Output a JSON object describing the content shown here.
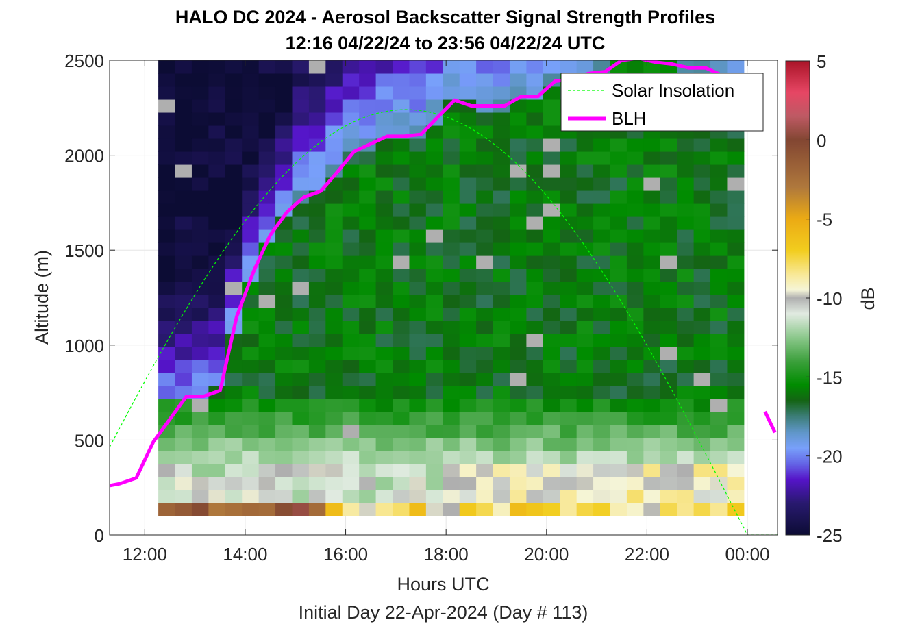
{
  "chart_data": {
    "type": "heatmap",
    "title": "HALO DC 2024 - Aerosol Backscatter Signal Strength Profiles",
    "subtitle": "12:16 04/22/24 to 23:56 04/22/24  UTC",
    "xlabel": "Hours UTC",
    "xlabel2": "Initial Day 22-Apr-2024 (Day # 113)",
    "ylabel": "Altitude (m)",
    "xlim": [
      11.3,
      24.6
    ],
    "ylim": [
      0,
      2500
    ],
    "xticks": [
      12,
      14,
      16,
      18,
      20,
      22,
      24
    ],
    "xtick_labels": [
      "12:00",
      "14:00",
      "16:00",
      "18:00",
      "20:00",
      "22:00",
      "00:00"
    ],
    "yticks": [
      0,
      500,
      1000,
      1500,
      2000,
      2500
    ],
    "ytick_labels": [
      "0",
      "500",
      "1000",
      "1500",
      "2000",
      "2500"
    ],
    "colorbar": {
      "label": "dB",
      "range": [
        -25,
        5
      ],
      "ticks": [
        5,
        0,
        -5,
        -10,
        -15,
        -20,
        -25
      ],
      "tick_labels": [
        "5",
        "0",
        "-5",
        "-10",
        "-15",
        "-20",
        "-25"
      ]
    },
    "heatmap": {
      "time_start": 12.27,
      "time_end": 23.93,
      "alt_start": 100,
      "alt_end": 2500,
      "columns": 35,
      "rows": 35,
      "description_values_in_dB": "modeled from image"
    },
    "legend": {
      "position": "top-right",
      "entries": [
        {
          "name": "Solar Insolation",
          "color": "#00ff00",
          "style": "dashed"
        },
        {
          "name": "BLH",
          "color": "#ff00ff",
          "style": "solid"
        }
      ]
    },
    "series": [
      {
        "name": "BLH",
        "color": "#ff00ff",
        "x": [
          11.3,
          11.5,
          11.83,
          12.17,
          12.5,
          12.83,
          13.17,
          13.5,
          13.83,
          14.17,
          14.5,
          14.83,
          15.17,
          15.5,
          15.83,
          16.17,
          16.5,
          16.83,
          17.17,
          17.5,
          17.83,
          18.17,
          18.5,
          18.83,
          19.17,
          19.5,
          19.83,
          20.17,
          20.5,
          20.83,
          21.17,
          21.5,
          21.83,
          22.17,
          22.5,
          22.83,
          23.17,
          23.5
        ],
        "y": [
          260,
          270,
          300,
          490,
          610,
          730,
          730,
          760,
          1150,
          1390,
          1580,
          1700,
          1780,
          1810,
          1910,
          2020,
          2060,
          2100,
          2100,
          2110,
          2200,
          2290,
          2260,
          2260,
          2260,
          2310,
          2310,
          2390,
          2400,
          2430,
          2440,
          2500,
          2510,
          2490,
          2480,
          2460,
          2460,
          2420
        ],
        "segment2_x": [
          24.35,
          24.55
        ],
        "segment2_y": [
          650,
          540
        ]
      },
      {
        "name": "Solar Insolation",
        "color": "#00ff00",
        "peak_time": 17.2,
        "peak_alt": 2240,
        "zero_after": 24.0
      }
    ]
  }
}
